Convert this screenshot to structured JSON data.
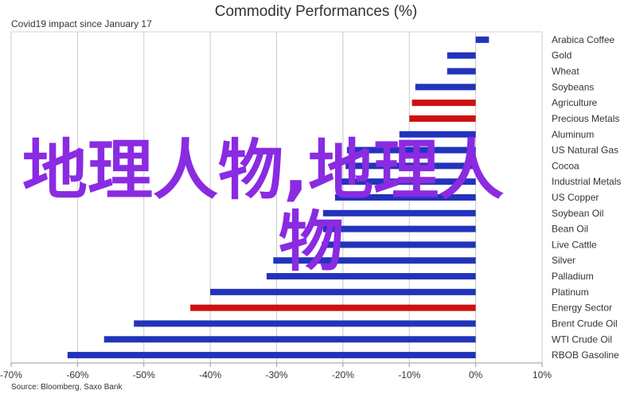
{
  "title": "Commodity Performances (%)",
  "subtitle": "Covid19 impact since January 17",
  "source": "Source: Bloomberg, Saxo Bank",
  "overlay": {
    "line1": "地理人物,地理人",
    "line2": "物"
  },
  "colors": {
    "positive": "#2233bb",
    "negative_energy": "#cc1111",
    "grid": "#c8c8c8",
    "text": "#333333",
    "overlay": "#8a2be2"
  },
  "chart_data": {
    "type": "bar",
    "orientation": "horizontal",
    "title": "Commodity Performances (%)",
    "subtitle": "Covid19 impact since January 17",
    "xlabel": "",
    "ylabel": "",
    "xlim": [
      -70,
      10
    ],
    "xticks": [
      -70,
      -60,
      -50,
      -40,
      -30,
      -20,
      -10,
      0,
      10
    ],
    "tick_suffix": "%",
    "grid": true,
    "categories": [
      "Arabica Coffee",
      "Gold",
      "Wheat",
      "Soybeans",
      "Agriculture",
      "Precious Metals",
      "Aluminum",
      "US Natural Gas",
      "Cocoa",
      "Industrial Metals",
      "US Copper",
      "Soybean Oil",
      "Bean Oil",
      "Live Cattle",
      "Silver",
      "Palladium",
      "Platinum",
      "Energy Sector",
      "Brent Crude Oil",
      "WTI Crude Oil",
      "RBOB Gasoline"
    ],
    "values": [
      2,
      -4.3,
      -4.3,
      -9.1,
      -9.6,
      -10,
      -11.5,
      -19.4,
      -19.6,
      -20.8,
      -21.2,
      -23,
      -23,
      -23.2,
      -30.5,
      -31.5,
      -40,
      -43,
      -51.5,
      -56,
      -61.5
    ],
    "bar_colors": [
      "#2233bb",
      "#2233bb",
      "#2233bb",
      "#2233bb",
      "#cc1111",
      "#cc1111",
      "#2233bb",
      "#2233bb",
      "#2233bb",
      "#2233bb",
      "#2233bb",
      "#2233bb",
      "#2233bb",
      "#2233bb",
      "#2233bb",
      "#2233bb",
      "#2233bb",
      "#cc1111",
      "#2233bb",
      "#2233bb",
      "#2233bb"
    ]
  }
}
